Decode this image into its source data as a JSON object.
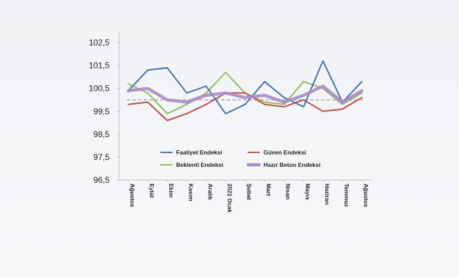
{
  "chart_data": {
    "type": "line",
    "categories": [
      "Ağustos",
      "Eylül",
      "Ekim",
      "Kasım",
      "Aralık",
      "2021 Ocak",
      "Şubat",
      "Mart",
      "Nisan",
      "Mayıs",
      "Haziran",
      "Temmuz",
      "Ağustos"
    ],
    "y_ticks": [
      "96,5",
      "97,5",
      "98,5",
      "99,5",
      "100,5",
      "101,5",
      "102,5"
    ],
    "ylim": [
      96.5,
      103.0
    ],
    "grid": false,
    "reference_line": 100.0,
    "legend_position": "inside-bottom",
    "series": [
      {
        "name": "Faaliyet Endeksi",
        "color": "#4472a6",
        "values": [
          100.4,
          101.3,
          101.4,
          100.3,
          100.6,
          99.4,
          99.8,
          100.8,
          100.1,
          99.7,
          101.7,
          99.9,
          100.8
        ]
      },
      {
        "name": "Güven Endeksi",
        "color": "#be4b48",
        "values": [
          99.8,
          99.9,
          99.1,
          99.4,
          99.8,
          100.3,
          100.3,
          99.8,
          99.7,
          100.0,
          99.5,
          99.6,
          100.1
        ]
      },
      {
        "name": "Beklenti Endeksi",
        "color": "#93b957",
        "values": [
          100.7,
          100.3,
          99.4,
          99.8,
          100.3,
          101.2,
          100.3,
          99.9,
          99.8,
          100.8,
          100.5,
          99.8,
          100.3
        ]
      },
      {
        "name": "Hazır Beton Endeksi",
        "color": "#a98bc4",
        "values": [
          100.4,
          100.5,
          100.0,
          99.9,
          100.2,
          100.3,
          100.1,
          100.2,
          99.9,
          100.2,
          100.6,
          99.9,
          100.4
        ]
      }
    ]
  }
}
